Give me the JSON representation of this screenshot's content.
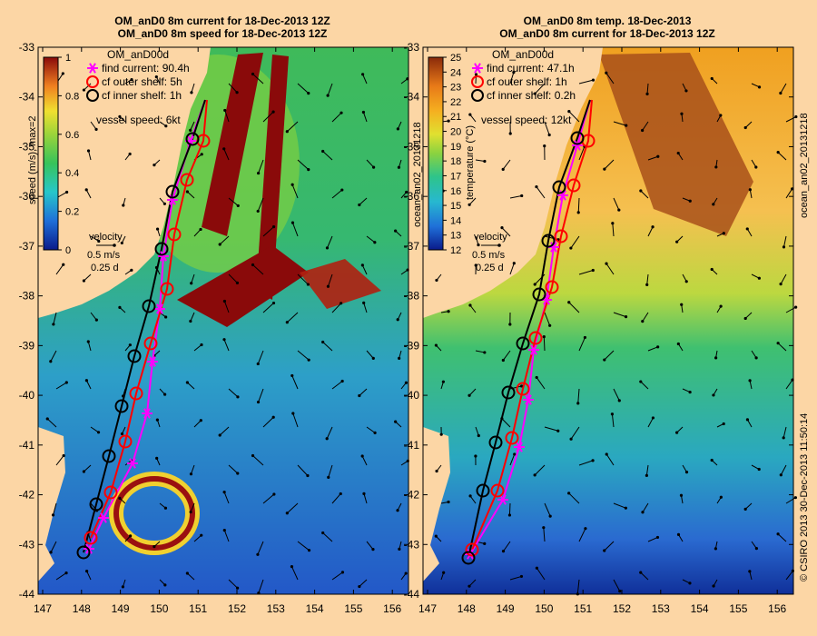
{
  "panels": [
    {
      "id": "left",
      "title1": "OM_anD0 8m current for 18-Dec-2013 12Z",
      "title2": "OM_anD0 8m speed for 18-Dec-2013 12Z",
      "model": "OM_anD00d",
      "legend": [
        {
          "label": "find current: 90.4h",
          "marker": "star",
          "color": "#ff00ff"
        },
        {
          "label": "cf outer shelf: 5h",
          "marker": "circle",
          "color": "#ff0000"
        },
        {
          "label": "cf inner shelf: 1h",
          "marker": "circle",
          "color": "#000000"
        }
      ],
      "vessel": "vessel speed: 6kt",
      "colorbar_label": "speed (m/s), max=2",
      "colorbar_ticks": [
        "1",
        "0.8",
        "0.6",
        "0.4",
        "0.2",
        "0"
      ],
      "velocity": [
        "velocity",
        "0.5 m/s",
        "0.25 d"
      ]
    },
    {
      "id": "right",
      "title1": "OM_anD0 8m temp. 18-Dec-2013",
      "title2": "OM_anD0 8m current for 18-Dec-2013 12Z",
      "model": "OM_anD00d",
      "legend": [
        {
          "label": "find current: 47.1h",
          "marker": "star",
          "color": "#ff00ff"
        },
        {
          "label": "cf outer shelf: 1h",
          "marker": "circle",
          "color": "#ff0000"
        },
        {
          "label": "cf inner shelf: 0.2h",
          "marker": "circle",
          "color": "#000000"
        }
      ],
      "vessel": "vessel speed: 12kt",
      "colorbar_label": "temperature (°C)",
      "colorbar_ticks": [
        "25",
        "24",
        "23",
        "22",
        "21",
        "20",
        "19",
        "18",
        "17",
        "16",
        "15",
        "14",
        "13",
        "12"
      ],
      "velocity": [
        "velocity",
        "0.5 m/s",
        "0.25 d"
      ]
    }
  ],
  "y_ticks": [
    "-33",
    "-34",
    "-35",
    "-36",
    "-37",
    "-38",
    "-39",
    "-40",
    "-41",
    "-42",
    "-43",
    "-44"
  ],
  "x_ticks": [
    "147",
    "148",
    "149",
    "150",
    "151",
    "152",
    "153",
    "154",
    "155",
    "156"
  ],
  "side_labels": {
    "left_rotated": "ocean_an02_20131218",
    "right_top": "ocean_an02_20131218",
    "right_bottom": "© CSIRO 2013   30-Dec-2013 11:50:14"
  }
}
